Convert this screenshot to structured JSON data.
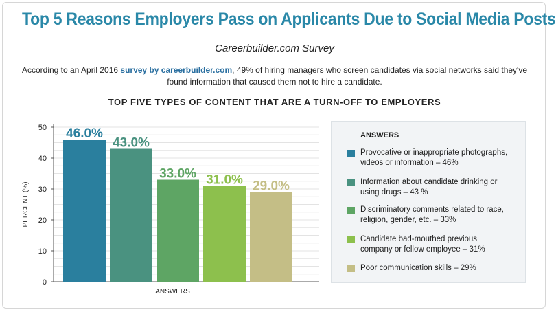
{
  "header": {
    "title": "Top 5 Reasons Employers Pass on Applicants Due to Social Media Posts",
    "subtitle": "Careerbuilder.com Survey",
    "intro_before": "According to an April 2016 ",
    "intro_link": "survey by careerbuilder.com",
    "intro_after": ", 49% of hiring managers who screen candidates via social networks said they've found information that caused them not to hire a candidate."
  },
  "chart_data": {
    "type": "bar",
    "title": "TOP FIVE TYPES OF CONTENT THAT ARE A TURN-OFF TO EMPLOYERS",
    "xlabel": "ANSWERS",
    "ylabel": "PERCENT (%)",
    "ylim": [
      0,
      50
    ],
    "yticks": [
      0,
      10,
      20,
      30,
      40,
      50
    ],
    "grid": true,
    "categories": [
      "Provocative or inappropriate photographs, videos or information",
      "Information about candidate drinking or using drugs",
      "Discriminatory comments related to race, religion, gender, etc.",
      "Candidate bad-mouthed previous company or fellow employee",
      "Poor communication skills"
    ],
    "values": [
      46,
      43,
      33,
      31,
      29
    ],
    "value_labels": [
      "46.0%",
      "43.0%",
      "33.0%",
      "31.0%",
      "29.0%"
    ],
    "colors": [
      "#2a7f9e",
      "#4a9280",
      "#5ea564",
      "#8dc04d",
      "#c4be86"
    ],
    "legend_position": "right"
  },
  "legend": {
    "heading": "ANSWERS",
    "items": [
      {
        "line1": "Provocative or inappropriate photographs,",
        "line2": "videos or information – 46%"
      },
      {
        "line1": "Information about candidate drinking or",
        "line2": "using drugs – 43 %"
      },
      {
        "line1": "Discriminatory comments related to race,",
        "line2": "religion, gender, etc. – 33%"
      },
      {
        "line1": "Candidate bad-mouthed previous",
        "line2": "company or fellow employee – 31%"
      },
      {
        "line1": "Poor communication skills – 29%",
        "line2": ""
      }
    ]
  }
}
